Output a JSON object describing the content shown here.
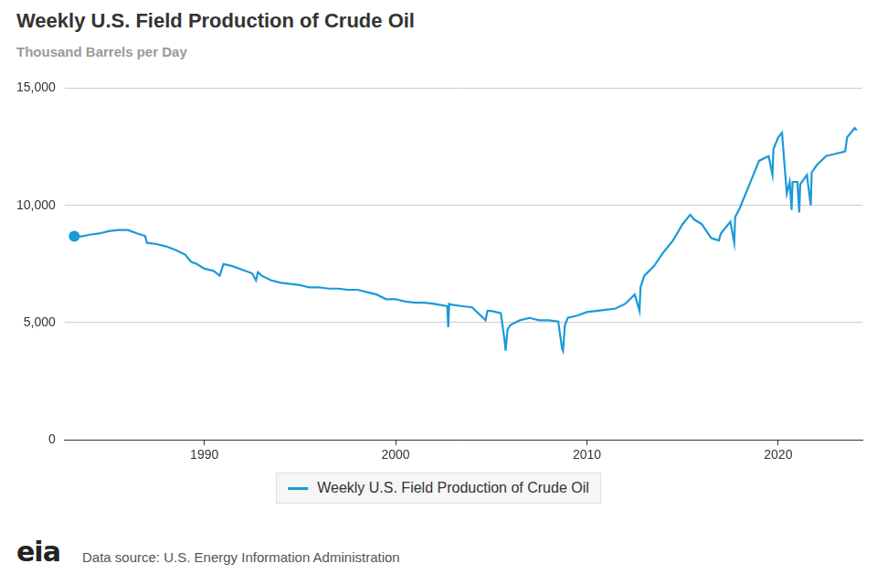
{
  "chart_data": {
    "type": "line",
    "title": "Weekly U.S. Field Production of Crude Oil",
    "subtitle": "Thousand Barrels per Day",
    "source": "Data source: U.S. Energy Information Administration",
    "logo": "eia",
    "legend": "bottom",
    "grid": true,
    "xlim": [
      1982.7,
      2024.4
    ],
    "xticks": [
      1990,
      2000,
      2010,
      2020
    ],
    "ylim": [
      0,
      15000
    ],
    "yticks": [
      0,
      {
        "value": 5000,
        "label": "5,000"
      },
      {
        "value": 10000,
        "label": "10,000"
      },
      {
        "value": 15000,
        "label": "15,000"
      }
    ],
    "x": [
      1983.2,
      1983.6,
      1984.0,
      1984.5,
      1985.0,
      1985.5,
      1986.0,
      1986.5,
      1986.9,
      1987.0,
      1987.5,
      1988.0,
      1988.5,
      1989.0,
      1989.3,
      1989.6,
      1990.0,
      1990.5,
      1990.8,
      1991.0,
      1991.5,
      1992.0,
      1992.5,
      1992.7,
      1992.8,
      1993.0,
      1993.5,
      1994.0,
      1994.5,
      1995.0,
      1995.5,
      1996.0,
      1996.5,
      1997.0,
      1997.5,
      1998.0,
      1998.5,
      1999.0,
      1999.5,
      2000.0,
      2000.5,
      2001.0,
      2001.5,
      2002.0,
      2002.7,
      2002.75,
      2002.8,
      2003.0,
      2003.5,
      2004.0,
      2004.7,
      2004.8,
      2005.0,
      2005.5,
      2005.7,
      2005.75,
      2005.85,
      2006.0,
      2006.5,
      2007.0,
      2007.5,
      2008.0,
      2008.5,
      2008.7,
      2008.75,
      2008.85,
      2009.0,
      2009.5,
      2010.0,
      2010.5,
      2011.0,
      2011.5,
      2012.0,
      2012.5,
      2012.75,
      2012.8,
      2013.0,
      2013.5,
      2014.0,
      2014.5,
      2015.0,
      2015.4,
      2015.6,
      2016.0,
      2016.5,
      2016.9,
      2017.0,
      2017.5,
      2017.7,
      2017.75,
      2018.0,
      2018.5,
      2019.0,
      2019.5,
      2019.7,
      2019.75,
      2020.0,
      2020.2,
      2020.35,
      2020.45,
      2020.6,
      2020.7,
      2020.75,
      2021.0,
      2021.1,
      2021.15,
      2021.5,
      2021.7,
      2021.75,
      2022.0,
      2022.5,
      2023.0,
      2023.5,
      2023.6,
      2024.0,
      2024.1
    ],
    "series": [
      {
        "name": "Weekly U.S. Field Production of Crude Oil",
        "color": "#1a9ad6",
        "marker": "start",
        "values": [
          8680,
          8680,
          8750,
          8800,
          8900,
          8950,
          8950,
          8800,
          8700,
          8400,
          8350,
          8250,
          8100,
          7900,
          7600,
          7500,
          7300,
          7200,
          7000,
          7500,
          7400,
          7250,
          7100,
          6800,
          7150,
          7000,
          6800,
          6700,
          6650,
          6600,
          6500,
          6500,
          6450,
          6450,
          6400,
          6400,
          6300,
          6200,
          6000,
          6000,
          5900,
          5850,
          5850,
          5800,
          5700,
          4800,
          5800,
          5750,
          5700,
          5650,
          5100,
          5500,
          5500,
          5400,
          4200,
          3800,
          4700,
          4900,
          5100,
          5200,
          5100,
          5100,
          5050,
          3900,
          3800,
          4900,
          5200,
          5300,
          5450,
          5500,
          5550,
          5600,
          5800,
          6200,
          5500,
          6500,
          7000,
          7400,
          8000,
          8500,
          9200,
          9600,
          9400,
          9200,
          8600,
          8500,
          8800,
          9300,
          8400,
          9500,
          9900,
          10900,
          11900,
          12100,
          11300,
          12400,
          12900,
          13100,
          11500,
          10500,
          11000,
          9800,
          11000,
          11000,
          9700,
          10900,
          11300,
          10000,
          11400,
          11700,
          12100,
          12200,
          12300,
          12900,
          13300,
          13200
        ]
      }
    ]
  }
}
